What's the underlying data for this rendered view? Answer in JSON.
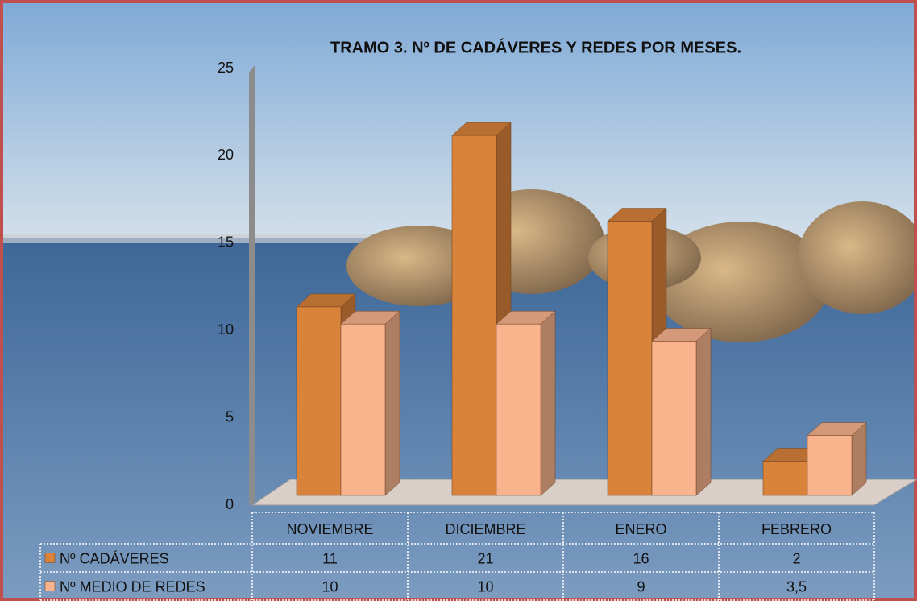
{
  "chart_data": {
    "type": "bar3d",
    "title": "TRAMO 3. Nº DE CADÁVERES Y REDES POR MESES.",
    "categories": [
      "NOVIEMBRE",
      "DICIEMBRE",
      "ENERO",
      "FEBRERO"
    ],
    "series": [
      {
        "name": "Nº CADÁVERES",
        "color": "#d9823a",
        "values": [
          11,
          21,
          16,
          2
        ]
      },
      {
        "name": "Nº MEDIO DE REDES",
        "color": "#f9b48e",
        "values": [
          10,
          10,
          9,
          3.5
        ],
        "value_labels": [
          "10",
          "10",
          "9",
          "3,5"
        ]
      }
    ],
    "ylim": [
      0,
      25
    ],
    "yticks": [
      0,
      5,
      10,
      15,
      20,
      25
    ],
    "grid": false
  }
}
